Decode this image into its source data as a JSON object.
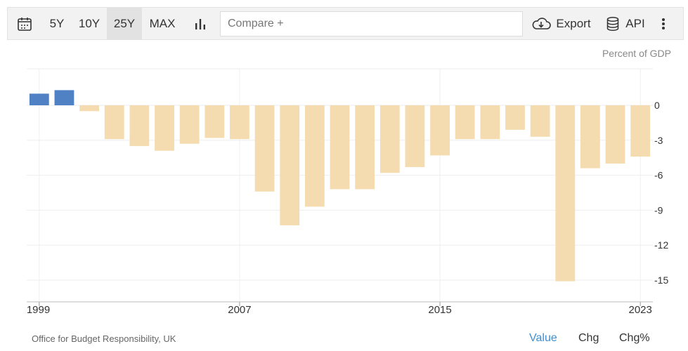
{
  "toolbar": {
    "ranges": [
      "5Y",
      "10Y",
      "25Y",
      "MAX"
    ],
    "active_range": "25Y",
    "compare_placeholder": "Compare +",
    "export_label": "Export",
    "api_label": "API"
  },
  "colors": {
    "positive": "#4f81c4",
    "negative": "#f5dcb0",
    "active_mode": "#3b8fd6"
  },
  "footer": {
    "source": "Office for Budget Responsibility, UK",
    "modes": [
      "Value",
      "Chg",
      "Chg%"
    ],
    "active_mode": "Value"
  },
  "chart_data": {
    "type": "bar",
    "title": "",
    "unit_label": "Percent of GDP",
    "x": [
      1999,
      2000,
      2001,
      2002,
      2003,
      2004,
      2005,
      2006,
      2007,
      2008,
      2009,
      2010,
      2011,
      2012,
      2013,
      2014,
      2015,
      2016,
      2017,
      2018,
      2019,
      2020,
      2021,
      2022,
      2023
    ],
    "values": [
      1.0,
      1.3,
      -0.5,
      -2.9,
      -3.5,
      -3.9,
      -3.3,
      -2.8,
      -2.9,
      -7.4,
      -10.3,
      -8.7,
      -7.2,
      -7.2,
      -5.8,
      -5.3,
      -4.3,
      -2.9,
      -2.9,
      -2.1,
      -2.7,
      -15.1,
      -5.4,
      -5.0,
      -4.4
    ],
    "x_ticks": [
      "1999",
      "2007",
      "2015",
      "2023"
    ],
    "y_ticks": [
      0,
      -3,
      -6,
      -9,
      -12,
      -15
    ],
    "ylim": [
      -15.5,
      3
    ],
    "grid": true
  }
}
